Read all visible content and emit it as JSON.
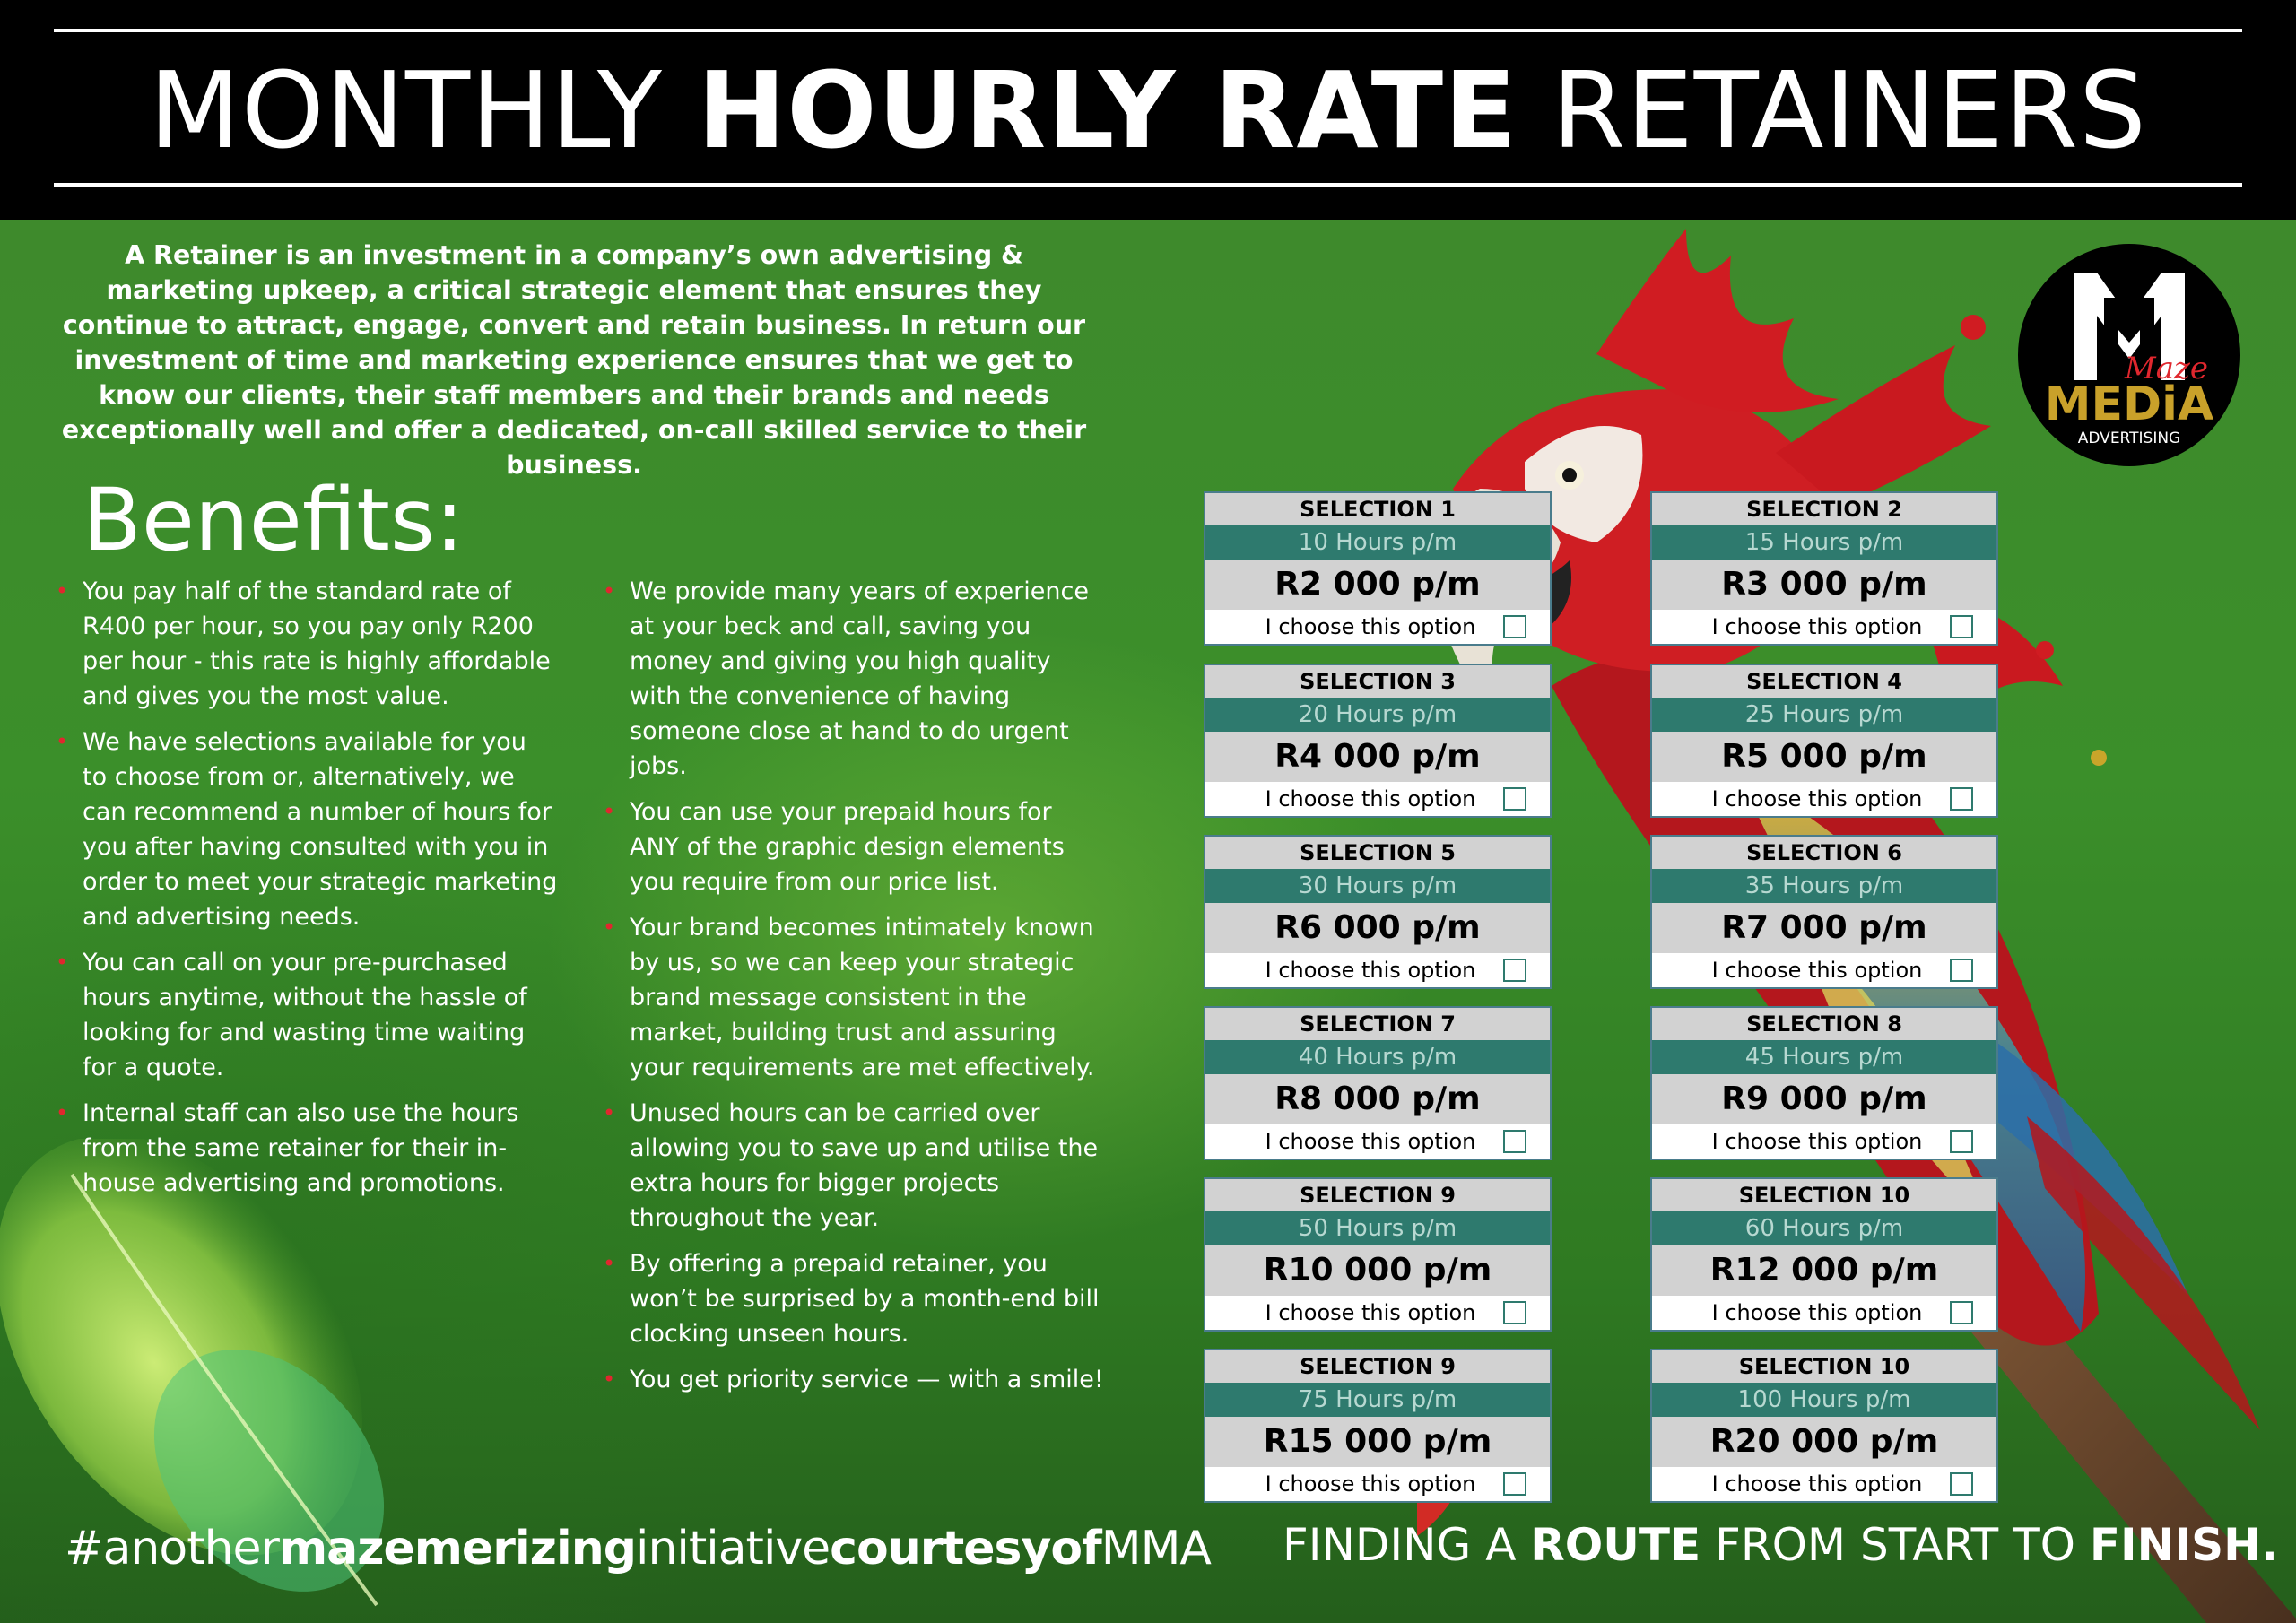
{
  "header": {
    "title_part1": "MONTHLY ",
    "title_part2": "HOURLY RATE",
    "title_part3": " RETAINERS"
  },
  "intro": "A Retainer is an investment in a company’s own advertising & marketing upkeep, a critical strategic element that ensures they continue to attract, engage, convert and retain business. In return our investment of time and marketing experience ensures that we get to know our clients, their staff members and their brands and needs exceptionally well and offer a dedicated, on-call skilled service to their business.",
  "benefits": {
    "heading": "Benefits:",
    "left": [
      "You pay half of the standard rate of R400 per hour, so you pay only R200 per hour - this rate is highly affordable and gives you the most value.",
      "We have selections available for you to choose from or, alternatively, we can recommend a number of hours for you after having consulted with you in order to meet your strategic marketing and advertising needs.",
      "You can call on your pre-purchased hours anytime, without the hassle of looking for and wasting time waiting for a quote.",
      "Internal staff can also use the hours from the same retainer for their in-house advertising and promotions."
    ],
    "right": [
      "We provide many years of experience at your beck and call, saving you money and giving you high quality with the convenience of having someone close at hand to do urgent jobs.",
      "You can use your prepaid hours for ANY of the graphic design elements you require from our price list.",
      "Your brand becomes intimately known by us, so we can keep your strategic brand message consistent in the market, building trust and assuring your requirements are met effectively.",
      "Unused hours can be carried over allowing you to save up and utilise the extra hours for bigger projects throughout the year.",
      "By offering a prepaid retainer, you won’t be surprised by a month-end bill clocking unseen hours.",
      "You get priority service — with a smile!"
    ]
  },
  "selections": [
    {
      "title": "SELECTION 1",
      "hours": "10 Hours p/m",
      "price": "R2 000 p/m",
      "choose": "I choose this option"
    },
    {
      "title": "SELECTION 2",
      "hours": "15 Hours p/m",
      "price": "R3 000 p/m",
      "choose": "I choose this option"
    },
    {
      "title": "SELECTION 3",
      "hours": "20 Hours p/m",
      "price": "R4 000 p/m",
      "choose": "I choose this option"
    },
    {
      "title": "SELECTION 4",
      "hours": "25 Hours p/m",
      "price": "R5 000 p/m",
      "choose": "I choose this option"
    },
    {
      "title": "SELECTION 5",
      "hours": "30 Hours p/m",
      "price": "R6 000 p/m",
      "choose": "I choose this option"
    },
    {
      "title": "SELECTION 6",
      "hours": "35 Hours p/m",
      "price": "R7 000 p/m",
      "choose": "I choose this option"
    },
    {
      "title": "SELECTION 7",
      "hours": "40 Hours p/m",
      "price": "R8 000 p/m",
      "choose": "I choose this option"
    },
    {
      "title": "SELECTION 8",
      "hours": "45 Hours p/m",
      "price": "R9 000 p/m",
      "choose": "I choose this option"
    },
    {
      "title": "SELECTION 9",
      "hours": "50 Hours p/m",
      "price": "R10 000 p/m",
      "choose": "I choose this option"
    },
    {
      "title": "SELECTION 10",
      "hours": "60 Hours p/m",
      "price": "R12 000 p/m",
      "choose": "I choose this option"
    },
    {
      "title": "SELECTION 9",
      "hours": "75 Hours p/m",
      "price": "R15 000 p/m",
      "choose": "I choose this option"
    },
    {
      "title": "SELECTION 10",
      "hours": "100 Hours p/m",
      "price": "R20 000 p/m",
      "choose": "I choose this option"
    }
  ],
  "logo": {
    "letters": "M",
    "script": "Maze",
    "word": "MEDiA",
    "sub": "ADVERTISING"
  },
  "footer": {
    "hashtag_1": "#another",
    "hashtag_2": "mazemerizing",
    "hashtag_3": "initiative",
    "hashtag_4": "courtesyof",
    "hashtag_5": "MMA",
    "tagline_1": "FINDING A ",
    "tagline_2": "ROUTE",
    "tagline_3": " FROM START TO ",
    "tagline_4": "FINISH."
  },
  "colors": {
    "header_bg": "#000000",
    "green": "#3b8f2a",
    "teal": "#2e7a6e",
    "bullet_red": "#e0272e"
  }
}
